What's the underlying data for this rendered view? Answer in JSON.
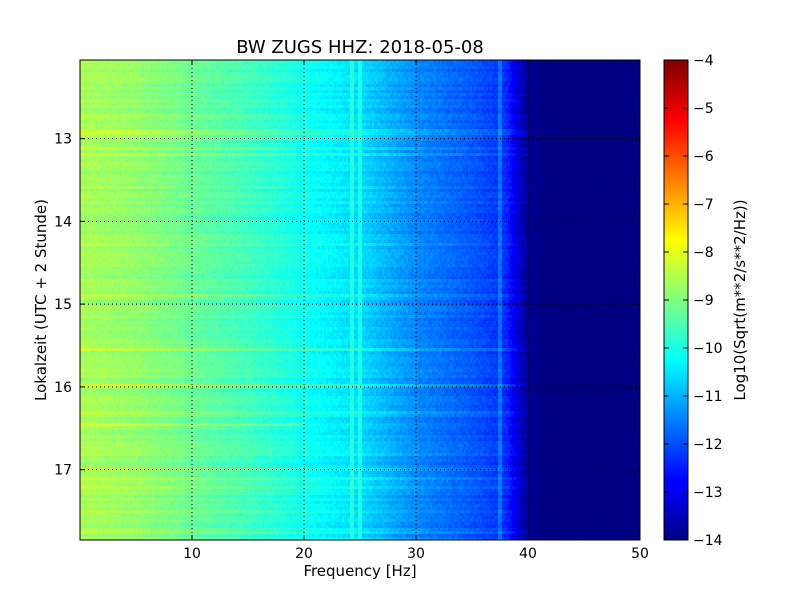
{
  "chart_data": {
    "type": "heatmap",
    "title": "BW ZUGS HHZ: 2018-05-08",
    "xlabel": "Frequency [Hz]",
    "ylabel": "Lokalzeit (UTC + 2 Stunde)",
    "xlim": [
      0,
      50
    ],
    "ylim": [
      17.85,
      12.05
    ],
    "y_axis_inverted": true,
    "xticks": [
      10,
      20,
      30,
      40,
      50
    ],
    "yticks": [
      13,
      14,
      15,
      16,
      17
    ],
    "grid": true,
    "colorbar": {
      "label": "Log10(Sqrt(m**2/s**2/Hz))",
      "range": [
        -14,
        -4
      ],
      "ticks": [
        -4,
        -5,
        -6,
        -7,
        -8,
        -9,
        -10,
        -11,
        -12,
        -13,
        -14
      ],
      "colormap": "jet"
    },
    "spectrum_profile": {
      "frequency_hz": [
        0,
        5,
        10,
        15,
        20,
        25,
        30,
        35,
        38,
        40,
        42,
        50
      ],
      "log10_amplitude": [
        -8.6,
        -8.8,
        -9.2,
        -9.6,
        -10.1,
        -10.6,
        -11.4,
        -11.9,
        -12.3,
        -13.8,
        -14,
        -14
      ]
    },
    "notable_features": {
      "noise_floor_above_hz": 40,
      "persistent_lines_hz": [
        24.3,
        25,
        37.5
      ],
      "bright_horizontal_band_time": 16.45
    }
  }
}
